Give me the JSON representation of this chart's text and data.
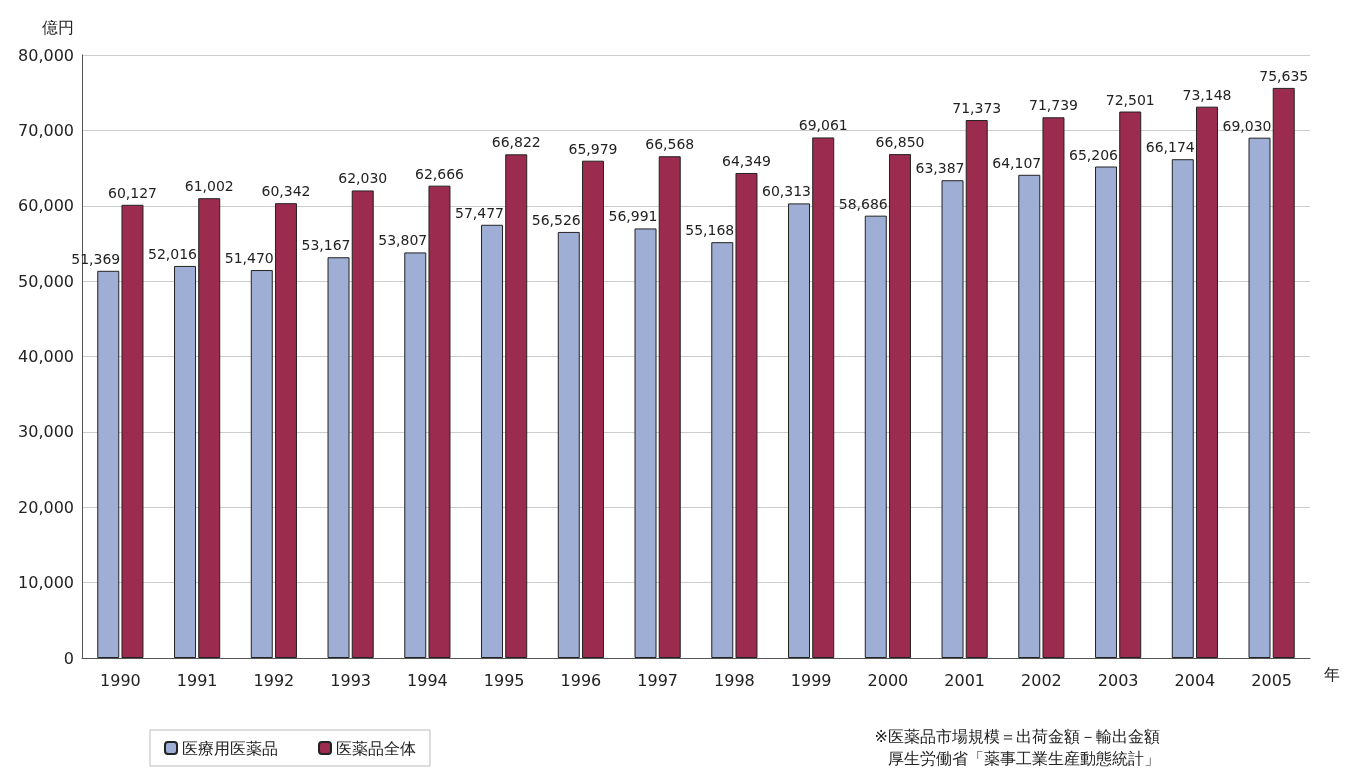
{
  "chart_data": {
    "type": "bar",
    "ylabel": "億円",
    "xlabel": "年",
    "categories": [
      "1990",
      "1991",
      "1992",
      "1993",
      "1994",
      "1995",
      "1996",
      "1997",
      "1998",
      "1999",
      "2000",
      "2001",
      "2002",
      "2003",
      "2004",
      "2005"
    ],
    "series": [
      {
        "name": "医療用医薬品",
        "color": "#9eaed4",
        "values": [
          51369,
          52016,
          51470,
          53167,
          53807,
          57477,
          56526,
          56991,
          55168,
          60313,
          58686,
          63387,
          64107,
          65206,
          66174,
          69030
        ],
        "value_labels": [
          "51,369",
          "52,016",
          "51,470",
          "53,167",
          "53,807",
          "57,477",
          "56,526",
          "56,991",
          "55,168",
          "60,313",
          "58,686",
          "63,387",
          "64,107",
          "65,206",
          "66,174",
          "69,030"
        ]
      },
      {
        "name": "医薬品全体",
        "color": "#9c2b50",
        "values": [
          60127,
          61002,
          60342,
          62030,
          62666,
          66822,
          65979,
          66568,
          64349,
          69061,
          66850,
          71373,
          71739,
          72501,
          73148,
          75635
        ],
        "value_labels": [
          "60,127",
          "61,002",
          "60,342",
          "62,030",
          "62,666",
          "66,822",
          "65,979",
          "66,568",
          "64,349",
          "69,061",
          "66,850",
          "71,373",
          "71,739",
          "72,501",
          "73,148",
          "75,635"
        ]
      }
    ],
    "ylim": [
      0,
      80000
    ],
    "yticks": [
      0,
      {
        "value": 10000,
        "label": "10,000"
      },
      {
        "value": 20000,
        "label": "20,000"
      },
      {
        "value": 30000,
        "label": "30,000"
      },
      {
        "value": 40000,
        "label": "40,000"
      },
      {
        "value": 50000,
        "label": "50,000"
      },
      {
        "value": 60000,
        "label": "60,000"
      },
      {
        "value": 70000,
        "label": "70,000"
      },
      {
        "value": 80000,
        "label": "80,000"
      }
    ],
    "grid": "y",
    "legend": "bottom left",
    "annotations": [
      "※医薬品市場規模＝出荷金額－輸出金額",
      "厚生労働省「薬事工業生産動態統計」"
    ]
  }
}
